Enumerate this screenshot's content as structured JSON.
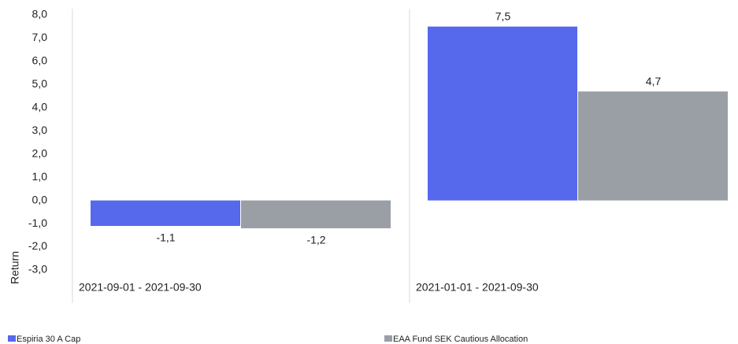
{
  "chart_data": {
    "type": "bar",
    "y_label": "Return",
    "categories": [
      "2021-09-01 - 2021-09-30",
      "2021-01-01 - 2021-09-30"
    ],
    "series": [
      {
        "name": "Espiria 30 A Cap",
        "color": "#5668ec",
        "values": [
          -1.1,
          7.5
        ],
        "value_labels": [
          "-1,1",
          "7,5"
        ]
      },
      {
        "name": "EAA Fund SEK Cautious Allocation",
        "color": "#9a9ea5",
        "values": [
          -1.2,
          4.7
        ],
        "value_labels": [
          "-1,2",
          "4,7"
        ]
      }
    ],
    "ylim": [
      -3,
      8
    ],
    "yticks": [
      {
        "value": -3,
        "label": "-3,0"
      },
      {
        "value": -2,
        "label": "-2,0"
      },
      {
        "value": -1,
        "label": "-1,0"
      },
      {
        "value": 0,
        "label": "0,0"
      },
      {
        "value": 1,
        "label": "1,0"
      },
      {
        "value": 2,
        "label": "2,0"
      },
      {
        "value": 3,
        "label": "3,0"
      },
      {
        "value": 4,
        "label": "4,0"
      },
      {
        "value": 5,
        "label": "5,0"
      },
      {
        "value": 6,
        "label": "6,0"
      },
      {
        "value": 7,
        "label": "7,0"
      },
      {
        "value": 8,
        "label": "8,0"
      }
    ]
  }
}
